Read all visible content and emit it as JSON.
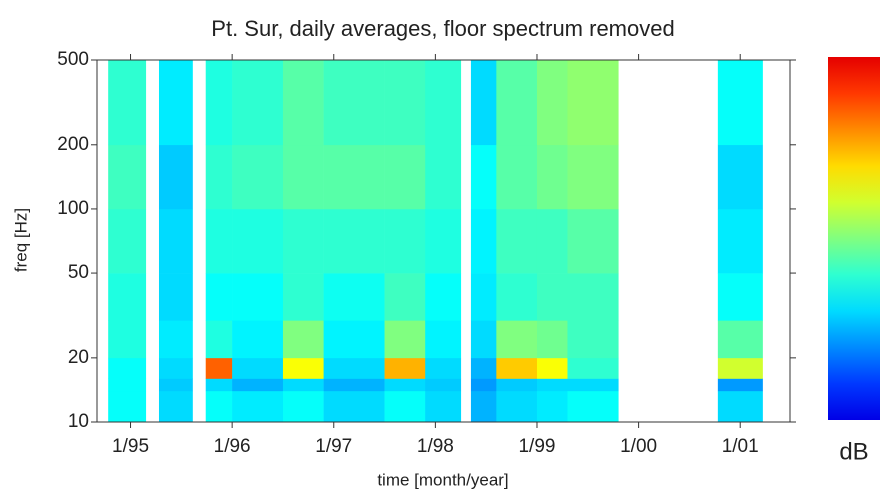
{
  "chart_data": {
    "type": "heatmap",
    "title": "Pt. Sur, daily averages, floor spectrum removed",
    "xlabel": "time [month/year]",
    "ylabel": "freq [Hz]",
    "colorbar_label": "dB",
    "colormap": "jet",
    "zlim": [
      0,
      1
    ],
    "x": [
      1994.67,
      1994.78,
      1995.15,
      1995.28,
      1995.61,
      1995.74,
      1996.0,
      1996.5,
      1996.9,
      1997.5,
      1997.9,
      1998.25,
      1998.35,
      1998.6,
      1999.0,
      1999.3,
      1999.8,
      2000.78,
      2001.22,
      2001.49
    ],
    "y": [
      10,
      14,
      16,
      20,
      30,
      50,
      100,
      200,
      500
    ],
    "z": [
      null,
      [
        0.35,
        0.35,
        0.35,
        0.38,
        0.38,
        0.4,
        0.42,
        0.4
      ],
      null,
      [
        0.3,
        0.28,
        0.3,
        0.32,
        0.3,
        0.3,
        0.28,
        0.32
      ],
      null,
      [
        0.35,
        0.3,
        0.85,
        0.38,
        0.35,
        0.38,
        0.4,
        0.38
      ],
      [
        0.32,
        0.25,
        0.3,
        0.33,
        0.35,
        0.38,
        0.42,
        0.4
      ],
      [
        0.35,
        0.3,
        0.65,
        0.5,
        0.4,
        0.4,
        0.45,
        0.45
      ],
      [
        0.3,
        0.25,
        0.3,
        0.33,
        0.36,
        0.4,
        0.45,
        0.42
      ],
      [
        0.35,
        0.3,
        0.75,
        0.5,
        0.42,
        0.4,
        0.45,
        0.42
      ],
      [
        0.3,
        0.28,
        0.3,
        0.33,
        0.35,
        0.38,
        0.4,
        0.4
      ],
      null,
      [
        0.25,
        0.22,
        0.25,
        0.3,
        0.32,
        0.33,
        0.35,
        0.3
      ],
      [
        0.3,
        0.28,
        0.72,
        0.5,
        0.4,
        0.42,
        0.45,
        0.45
      ],
      [
        0.32,
        0.3,
        0.65,
        0.48,
        0.42,
        0.42,
        0.48,
        0.5
      ],
      [
        0.35,
        0.3,
        0.4,
        0.42,
        0.42,
        0.45,
        0.5,
        0.52
      ],
      null,
      [
        0.3,
        0.22,
        0.6,
        0.45,
        0.35,
        0.32,
        0.3,
        0.35
      ],
      null
    ],
    "xlim": [
      1994.67,
      2001.49
    ],
    "xticks": [
      {
        "value": 1995,
        "label": "1/95"
      },
      {
        "value": 1996,
        "label": "1/96"
      },
      {
        "value": 1997,
        "label": "1/97"
      },
      {
        "value": 1998,
        "label": "1/98"
      },
      {
        "value": 1999,
        "label": "1/99"
      },
      {
        "value": 2000,
        "label": "1/00"
      },
      {
        "value": 2001,
        "label": "1/01"
      }
    ],
    "ylim": [
      10,
      500
    ],
    "yticks": [
      10,
      20,
      50,
      100,
      200,
      500
    ],
    "yscale": "log"
  }
}
